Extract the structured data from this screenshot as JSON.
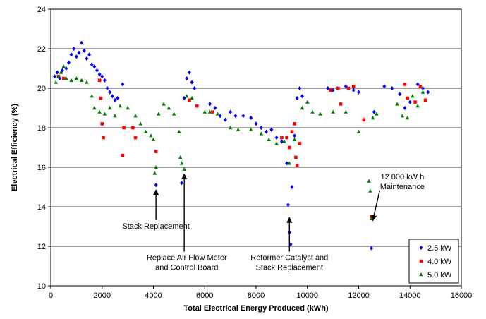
{
  "chart_data": {
    "type": "scatter",
    "title": "",
    "xlabel": "Total Electrical Energy Produced (kWh)",
    "ylabel": "Electrical Efficiency (%)",
    "xlim": [
      0,
      16000
    ],
    "ylim": [
      10,
      24
    ],
    "x_ticks": [
      "0",
      "2000",
      "4000",
      "6000",
      "8000",
      "10000",
      "12000",
      "14000",
      "16000"
    ],
    "y_ticks": [
      "10",
      "12",
      "14",
      "16",
      "18",
      "20",
      "22",
      "24"
    ],
    "grid": "horizontal",
    "legend_position": "bottom-right",
    "series": [
      {
        "name": "2.5 kW",
        "color": "#0000ff",
        "marker": "diamond",
        "points": [
          [
            150,
            20.6
          ],
          [
            250,
            20.8
          ],
          [
            350,
            20.5
          ],
          [
            450,
            20.9
          ],
          [
            600,
            21.0
          ],
          [
            700,
            21.3
          ],
          [
            800,
            21.7
          ],
          [
            900,
            22.0
          ],
          [
            1000,
            21.6
          ],
          [
            1100,
            21.8
          ],
          [
            1200,
            22.3
          ],
          [
            1300,
            21.9
          ],
          [
            1400,
            21.5
          ],
          [
            1500,
            21.7
          ],
          [
            1600,
            21.2
          ],
          [
            1700,
            21.1
          ],
          [
            1800,
            20.9
          ],
          [
            1900,
            20.7
          ],
          [
            2000,
            20.6
          ],
          [
            2100,
            20.4
          ],
          [
            2200,
            20.0
          ],
          [
            2300,
            19.8
          ],
          [
            2400,
            19.6
          ],
          [
            2500,
            19.4
          ],
          [
            2600,
            19.5
          ],
          [
            2800,
            20.2
          ],
          [
            4100,
            15.1
          ],
          [
            5100,
            15.2
          ],
          [
            5200,
            19.5
          ],
          [
            5300,
            20.5
          ],
          [
            5400,
            20.8
          ],
          [
            5500,
            20.3
          ],
          [
            5600,
            20.0
          ],
          [
            6200,
            19.2
          ],
          [
            6400,
            19.0
          ],
          [
            6600,
            18.6
          ],
          [
            6800,
            18.4
          ],
          [
            7000,
            18.8
          ],
          [
            7200,
            18.6
          ],
          [
            7500,
            18.6
          ],
          [
            7800,
            18.5
          ],
          [
            8000,
            18.2
          ],
          [
            8200,
            18.0
          ],
          [
            8400,
            17.8
          ],
          [
            8600,
            17.9
          ],
          [
            8800,
            17.5
          ],
          [
            9000,
            17.3
          ],
          [
            9200,
            16.2
          ],
          [
            9250,
            14.1
          ],
          [
            9300,
            12.7
          ],
          [
            9350,
            12.1
          ],
          [
            9400,
            15.0
          ],
          [
            9500,
            17.6
          ],
          [
            9600,
            19.5
          ],
          [
            9700,
            20.0
          ],
          [
            9800,
            19.6
          ],
          [
            10800,
            20.0
          ],
          [
            11000,
            19.9
          ],
          [
            11500,
            20.1
          ],
          [
            11800,
            19.9
          ],
          [
            12000,
            19.8
          ],
          [
            12500,
            11.9
          ],
          [
            12600,
            18.8
          ],
          [
            13000,
            20.1
          ],
          [
            13300,
            20.0
          ],
          [
            13600,
            19.7
          ],
          [
            13800,
            19.0
          ],
          [
            14000,
            19.3
          ],
          [
            14300,
            20.2
          ],
          [
            14500,
            20.0
          ],
          [
            14700,
            19.8
          ]
        ]
      },
      {
        "name": "4.0 kW",
        "color": "#ff0000",
        "marker": "square",
        "points": [
          [
            300,
            20.6
          ],
          [
            500,
            20.5
          ],
          [
            1900,
            20.4
          ],
          [
            1950,
            19.5
          ],
          [
            2000,
            18.2
          ],
          [
            2050,
            17.5
          ],
          [
            2800,
            16.6
          ],
          [
            2850,
            18.0
          ],
          [
            3200,
            18.0
          ],
          [
            3300,
            17.5
          ],
          [
            4100,
            16.8
          ],
          [
            5400,
            19.4
          ],
          [
            5700,
            19.1
          ],
          [
            6300,
            18.8
          ],
          [
            9000,
            17.5
          ],
          [
            9200,
            17.5
          ],
          [
            9300,
            17.0
          ],
          [
            9400,
            17.8
          ],
          [
            9500,
            18.2
          ],
          [
            9550,
            16.5
          ],
          [
            9600,
            16.1
          ],
          [
            9700,
            17.2
          ],
          [
            10900,
            19.9
          ],
          [
            11200,
            20.0
          ],
          [
            11300,
            19.2
          ],
          [
            11600,
            20.0
          ],
          [
            11800,
            20.1
          ],
          [
            12200,
            18.4
          ],
          [
            12500,
            13.5
          ],
          [
            13800,
            20.2
          ],
          [
            13900,
            19.5
          ],
          [
            14200,
            19.3
          ],
          [
            14400,
            20.1
          ],
          [
            14600,
            19.4
          ]
        ]
      },
      {
        "name": "5.0 kW",
        "color": "#008000",
        "marker": "triangle",
        "points": [
          [
            200,
            20.3
          ],
          [
            300,
            20.6
          ],
          [
            400,
            20.8
          ],
          [
            500,
            21.1
          ],
          [
            600,
            20.5
          ],
          [
            800,
            20.4
          ],
          [
            1000,
            20.5
          ],
          [
            1200,
            20.4
          ],
          [
            1400,
            20.3
          ],
          [
            1600,
            19.6
          ],
          [
            1700,
            19.0
          ],
          [
            1900,
            18.8
          ],
          [
            2100,
            18.7
          ],
          [
            2300,
            19.0
          ],
          [
            2500,
            18.6
          ],
          [
            2700,
            19.1
          ],
          [
            3000,
            19.0
          ],
          [
            3300,
            18.6
          ],
          [
            3500,
            18.2
          ],
          [
            3700,
            17.8
          ],
          [
            3900,
            17.6
          ],
          [
            4000,
            17.4
          ],
          [
            4050,
            15.7
          ],
          [
            4100,
            16.0
          ],
          [
            4200,
            18.7
          ],
          [
            4400,
            19.2
          ],
          [
            4600,
            19.0
          ],
          [
            4800,
            18.7
          ],
          [
            5000,
            17.8
          ],
          [
            5050,
            16.5
          ],
          [
            5100,
            16.2
          ],
          [
            5200,
            15.9
          ],
          [
            5300,
            19.6
          ],
          [
            5500,
            19.5
          ],
          [
            6000,
            18.8
          ],
          [
            6200,
            18.8
          ],
          [
            6500,
            18.7
          ],
          [
            7000,
            18.0
          ],
          [
            7300,
            17.9
          ],
          [
            7800,
            17.9
          ],
          [
            8200,
            17.7
          ],
          [
            8500,
            17.4
          ],
          [
            8800,
            17.2
          ],
          [
            9100,
            17.3
          ],
          [
            9300,
            16.2
          ],
          [
            9500,
            17.4
          ],
          [
            9800,
            19.0
          ],
          [
            10000,
            19.3
          ],
          [
            10200,
            18.8
          ],
          [
            10500,
            18.7
          ],
          [
            11000,
            18.8
          ],
          [
            11500,
            18.8
          ],
          [
            12000,
            17.8
          ],
          [
            12400,
            15.3
          ],
          [
            12450,
            14.8
          ],
          [
            12500,
            13.4
          ],
          [
            12550,
            18.5
          ],
          [
            12700,
            18.7
          ],
          [
            13500,
            19.2
          ],
          [
            13700,
            18.6
          ],
          [
            13900,
            18.5
          ],
          [
            14100,
            19.6
          ],
          [
            14300,
            19.1
          ],
          [
            14500,
            19.8
          ]
        ]
      }
    ],
    "annotations": [
      {
        "lines": [
          "Stack Replacement"
        ],
        "x": 4100,
        "y": 12.9,
        "arrow_to": [
          4100,
          15.0
        ]
      },
      {
        "lines": [
          "Replace Air Flow Meter",
          "and Control Board"
        ],
        "x": 5300,
        "y": 11.3,
        "arrow_to": [
          5200,
          15.8
        ]
      },
      {
        "lines": [
          "Reformer Catalyst and",
          "Stack Replacement"
        ],
        "x": 9300,
        "y": 11.3,
        "arrow_to": [
          9300,
          13.6
        ]
      },
      {
        "lines": [
          "12 000 kW h",
          "Maintenance"
        ],
        "x": 13700,
        "y": 15.4,
        "arrow_to": [
          12550,
          13.3
        ]
      }
    ]
  }
}
